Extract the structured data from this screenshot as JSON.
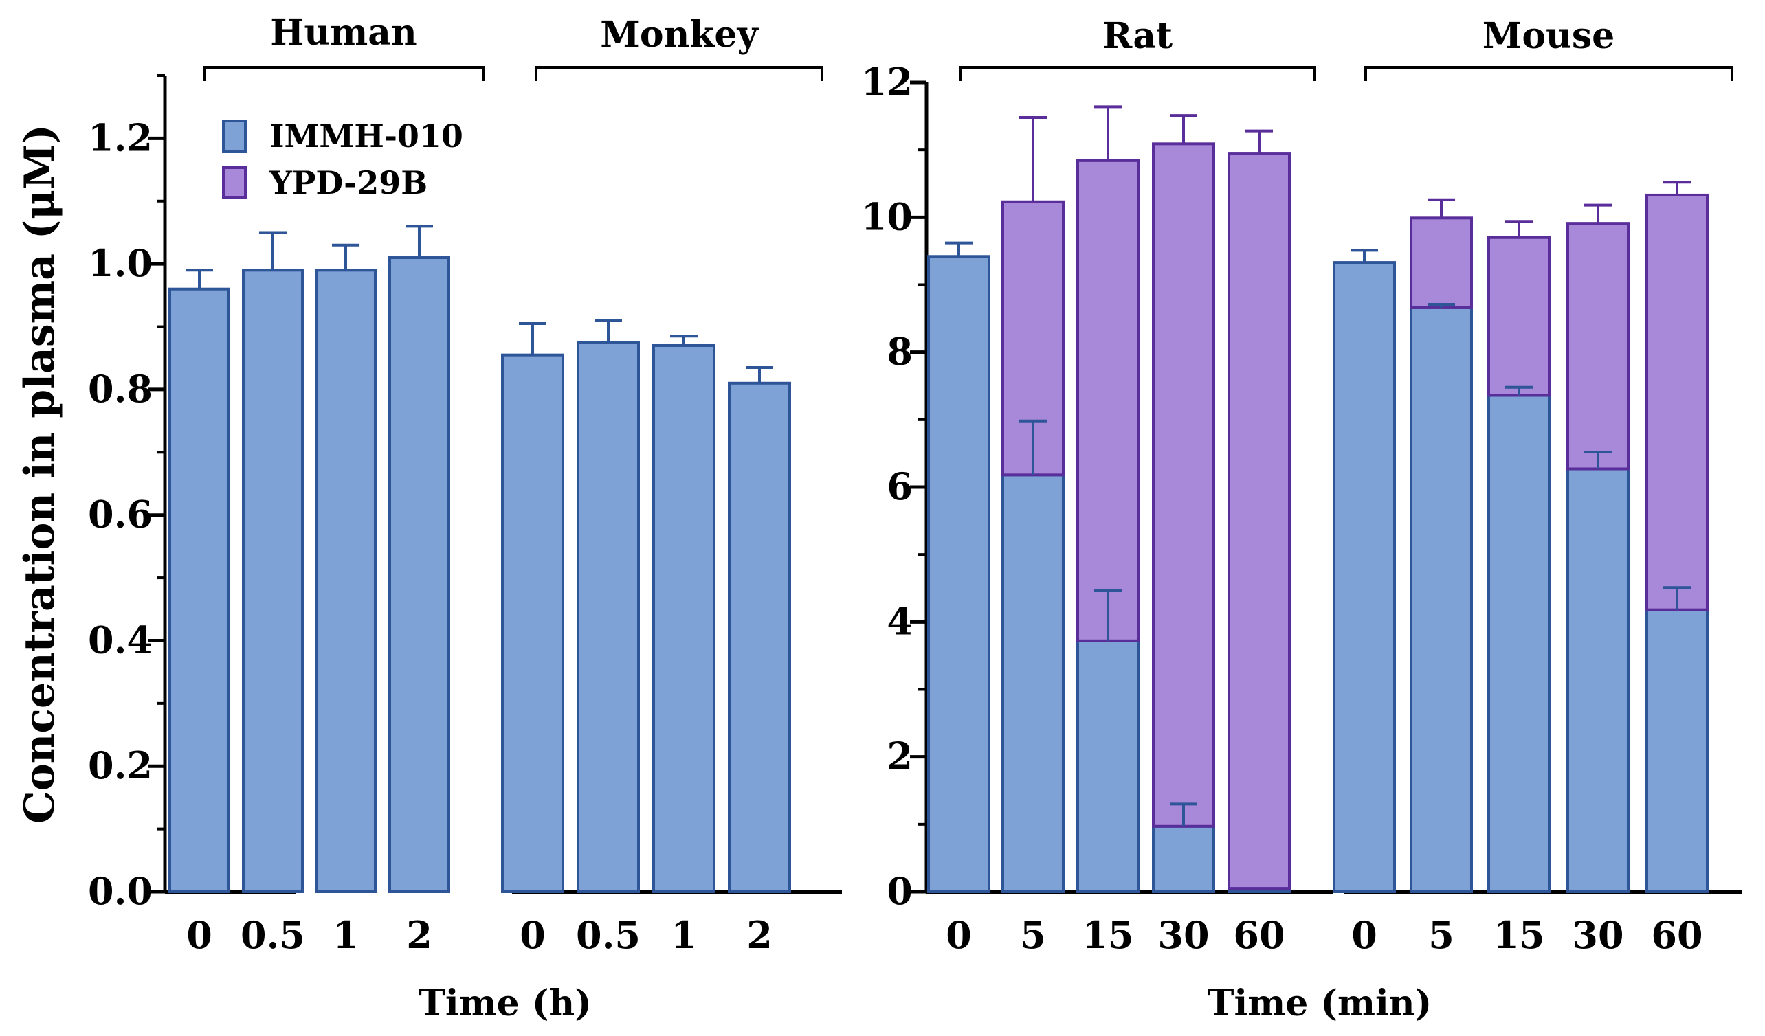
{
  "colors": {
    "immh": "#7ea2d6",
    "immh_stroke": "#2e5597",
    "ypd": "#a888d8",
    "ypd_stroke": "#5a2e9a",
    "axis": "#000000"
  },
  "y_axis_label": "Concentration in plasma (μM)",
  "legend": [
    {
      "label": "IMMH-010",
      "series": "immh"
    },
    {
      "label": "YPD-29B",
      "series": "ypd"
    }
  ],
  "chart_data": [
    {
      "type": "bar",
      "panel": "left",
      "xlabel": "Time (h)",
      "ylabel": "Concentration in plasma (μM)",
      "ylim": [
        0,
        1.3
      ],
      "yticks": [
        "0.0",
        "0.2",
        "0.4",
        "0.6",
        "0.8",
        "1.0",
        "1.2"
      ],
      "ytick_values": [
        0,
        0.2,
        0.4,
        0.6,
        0.8,
        1.0,
        1.2
      ],
      "groups": [
        {
          "name": "Human",
          "categories": [
            "0",
            "0.5",
            "1",
            "2"
          ],
          "series": [
            {
              "name": "IMMH-010",
              "values": [
                0.96,
                0.99,
                0.99,
                1.01
              ],
              "errors": [
                0.03,
                0.06,
                0.04,
                0.05
              ]
            }
          ]
        },
        {
          "name": "Monkey",
          "categories": [
            "0",
            "0.5",
            "1",
            "2"
          ],
          "series": [
            {
              "name": "IMMH-010",
              "values": [
                0.855,
                0.875,
                0.87,
                0.81
              ],
              "errors": [
                0.05,
                0.035,
                0.015,
                0.025
              ]
            }
          ]
        }
      ]
    },
    {
      "type": "stacked-bar",
      "panel": "right",
      "xlabel": "Time (min)",
      "ylim": [
        0,
        12
      ],
      "yticks": [
        "0",
        "2",
        "4",
        "6",
        "8",
        "10",
        "12"
      ],
      "ytick_values": [
        0,
        2,
        4,
        6,
        8,
        10,
        12
      ],
      "groups": [
        {
          "name": "Rat",
          "categories": [
            "0",
            "5",
            "15",
            "30",
            "60"
          ],
          "series": [
            {
              "name": "IMMH-010",
              "values": [
                9.42,
                6.18,
                3.72,
                0.97,
                0.05
              ],
              "errors": [
                0.2,
                0.8,
                0.75,
                0.33,
                0.0
              ]
            },
            {
              "name": "YPD-29B",
              "values": [
                0.0,
                4.05,
                7.12,
                10.12,
                10.9
              ],
              "errors": [
                0.0,
                1.25,
                0.8,
                0.42,
                0.33
              ]
            }
          ]
        },
        {
          "name": "Mouse",
          "categories": [
            "0",
            "5",
            "15",
            "30",
            "60"
          ],
          "series": [
            {
              "name": "IMMH-010",
              "values": [
                9.33,
                8.66,
                7.36,
                6.27,
                4.18
              ],
              "errors": [
                0.18,
                0.05,
                0.12,
                0.25,
                0.33
              ]
            },
            {
              "name": "YPD-29B",
              "values": [
                0.0,
                1.33,
                2.34,
                3.64,
                6.15
              ],
              "errors": [
                0.0,
                0.27,
                0.24,
                0.27,
                0.19
              ]
            }
          ]
        }
      ]
    }
  ]
}
